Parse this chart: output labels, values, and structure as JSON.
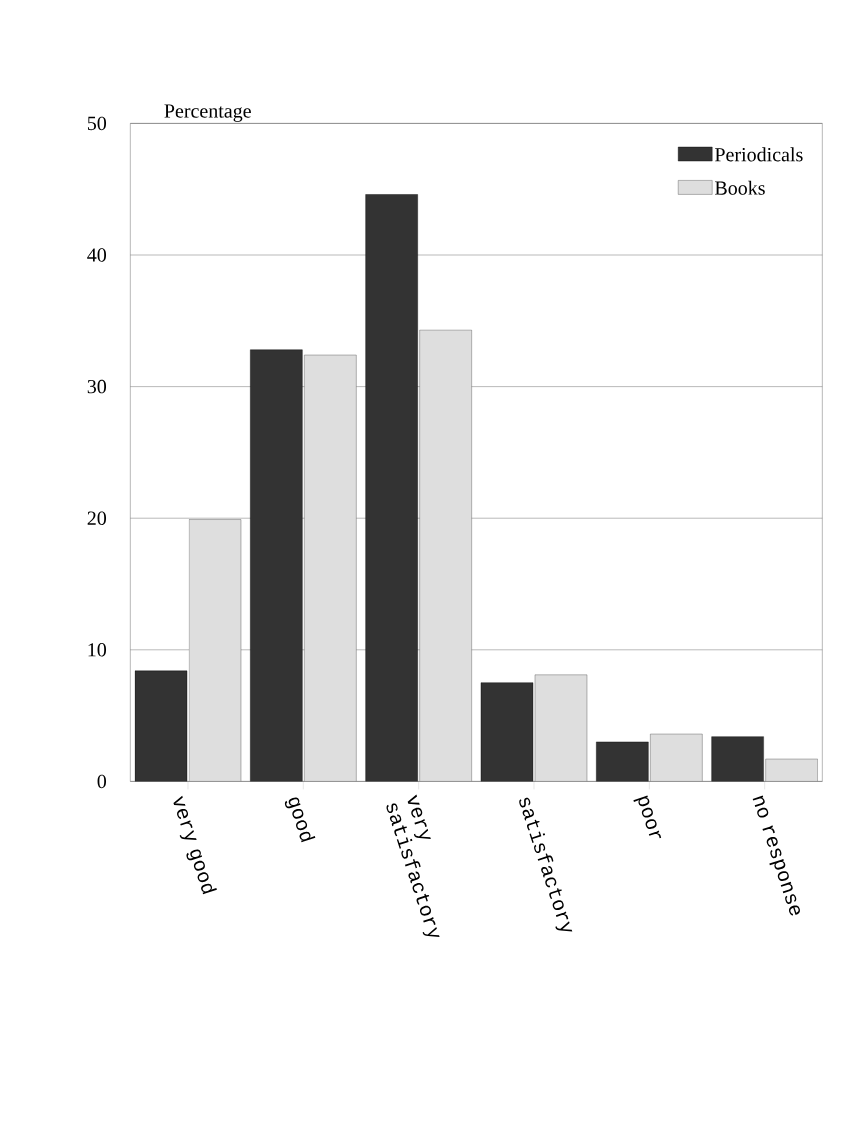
{
  "chart_data": {
    "type": "bar",
    "ylabel": "Percentage",
    "categories": [
      "very good",
      "good",
      "very satisfactory",
      "satisfactory",
      "poor",
      "no response"
    ],
    "series": [
      {
        "name": "Periodicals",
        "color": "#333333",
        "values": [
          8.4,
          32.8,
          44.6,
          7.5,
          3.0,
          3.4
        ]
      },
      {
        "name": "Books",
        "color": "#dedede",
        "values": [
          19.9,
          32.4,
          34.3,
          8.1,
          3.6,
          1.7
        ]
      }
    ],
    "ylim": [
      0,
      50
    ],
    "yticks": [
      0,
      10,
      20,
      30,
      40,
      50
    ],
    "grid": "y",
    "legend": "top right"
  }
}
